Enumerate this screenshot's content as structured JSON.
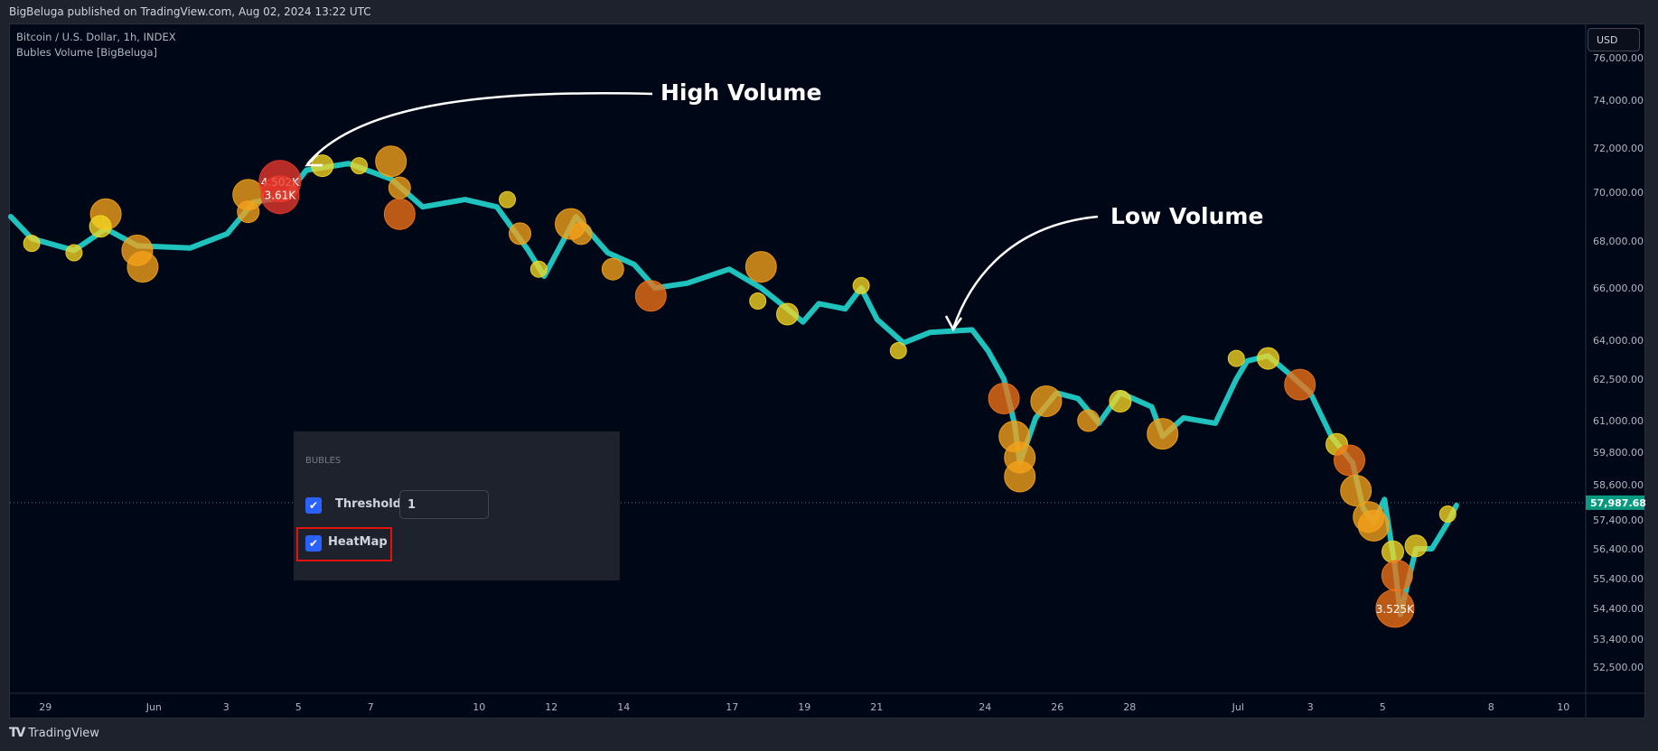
{
  "header": {
    "published": "BigBeluga published on TradingView.com, Aug 02, 2024 13:22 UTC"
  },
  "legend": {
    "symbol": "Bitcoin / U.S. Dollar, 1h, INDEX",
    "indicator": "Bubles Volume [BigBeluga]"
  },
  "currency_button": "USD",
  "footer": {
    "logo": "TV",
    "brand": "TradingView"
  },
  "annotations": {
    "high": "High Volume",
    "low": "Low Volume"
  },
  "settings_panel": {
    "section": "BUBLES",
    "threshold_label": "Threshold",
    "threshold_value": "1",
    "threshold_checked": true,
    "heatmap_label": "HeatMap",
    "heatmap_checked": true
  },
  "colors": {
    "line": "#1fc2bd",
    "last_price": "#089981",
    "yellow": "#f5d623",
    "orange": "#f5a21a",
    "darkorange": "#ef7217",
    "red": "#e8392a"
  },
  "chart_data": {
    "type": "scatter",
    "title": "Bitcoin / U.S. Dollar, 1h, INDEX",
    "x_unit": "days since May 29",
    "y_ticks": [
      "76,000.00",
      "74,000.00",
      "72,000.00",
      "70,000.00",
      "68,000.00",
      "66,000.00",
      "64,000.00",
      "62,500.00",
      "61,000.00",
      "59,800.00",
      "58,600.00",
      "57,400.00",
      "56,400.00",
      "55,400.00",
      "54,400.00",
      "53,400.00",
      "52,500.00"
    ],
    "y_tick_values": [
      76000,
      74000,
      72000,
      70000,
      68000,
      66000,
      64000,
      62500,
      61000,
      59800,
      58600,
      57400,
      56400,
      55400,
      54400,
      53400,
      52500
    ],
    "x_ticks": [
      {
        "label": "29",
        "t": 0
      },
      {
        "label": "Jun",
        "t": 3
      },
      {
        "label": "3",
        "t": 5
      },
      {
        "label": "5",
        "t": 7
      },
      {
        "label": "7",
        "t": 9
      },
      {
        "label": "10",
        "t": 12
      },
      {
        "label": "12",
        "t": 14
      },
      {
        "label": "14",
        "t": 16
      },
      {
        "label": "17",
        "t": 19
      },
      {
        "label": "19",
        "t": 21
      },
      {
        "label": "21",
        "t": 23
      },
      {
        "label": "24",
        "t": 26
      },
      {
        "label": "26",
        "t": 28
      },
      {
        "label": "28",
        "t": 30
      },
      {
        "label": "Jul",
        "t": 33
      },
      {
        "label": "3",
        "t": 35
      },
      {
        "label": "5",
        "t": 37
      },
      {
        "label": "8",
        "t": 40
      },
      {
        "label": "10",
        "t": 42
      }
    ],
    "last_price": 57987.68,
    "last_price_label": "57,987.68",
    "price_series": [
      [
        -0.96,
        69000
      ],
      [
        -0.38,
        68100
      ],
      [
        0.79,
        67600
      ],
      [
        1.67,
        68500
      ],
      [
        2.54,
        67800
      ],
      [
        4.0,
        67700
      ],
      [
        5.03,
        68300
      ],
      [
        5.76,
        69600
      ],
      [
        6.64,
        69800
      ],
      [
        7.22,
        71000
      ],
      [
        8.39,
        71300
      ],
      [
        9.56,
        70600
      ],
      [
        10.44,
        69400
      ],
      [
        11.61,
        69700
      ],
      [
        12.49,
        69400
      ],
      [
        13.36,
        67600
      ],
      [
        13.8,
        66500
      ],
      [
        14.68,
        69000
      ],
      [
        15.56,
        67500
      ],
      [
        16.29,
        67000
      ],
      [
        16.87,
        66000
      ],
      [
        17.75,
        66200
      ],
      [
        18.92,
        66800
      ],
      [
        19.8,
        66000
      ],
      [
        20.53,
        65200
      ],
      [
        20.96,
        64700
      ],
      [
        21.4,
        65400
      ],
      [
        22.13,
        65200
      ],
      [
        22.57,
        66000
      ],
      [
        23.01,
        64800
      ],
      [
        23.74,
        63900
      ],
      [
        24.47,
        64300
      ],
      [
        25.64,
        64400
      ],
      [
        26.08,
        63600
      ],
      [
        26.52,
        62500
      ],
      [
        26.81,
        60900
      ],
      [
        26.96,
        59400
      ],
      [
        27.4,
        61100
      ],
      [
        27.98,
        62000
      ],
      [
        28.57,
        61800
      ],
      [
        29.15,
        60900
      ],
      [
        29.74,
        62000
      ],
      [
        30.61,
        61500
      ],
      [
        30.91,
        60400
      ],
      [
        31.49,
        61100
      ],
      [
        32.37,
        60900
      ],
      [
        32.95,
        62500
      ],
      [
        33.25,
        63200
      ],
      [
        33.83,
        63400
      ],
      [
        34.42,
        62700
      ],
      [
        35.0,
        62000
      ],
      [
        35.58,
        60400
      ],
      [
        36.17,
        59400
      ],
      [
        36.46,
        57800
      ],
      [
        36.75,
        57300
      ],
      [
        37.05,
        58100
      ],
      [
        37.34,
        55800
      ],
      [
        37.49,
        54200
      ],
      [
        37.92,
        56400
      ],
      [
        38.36,
        56400
      ],
      [
        38.8,
        57300
      ],
      [
        39.04,
        57900
      ]
    ],
    "bubbles": [
      {
        "t": 1.67,
        "price": 69100,
        "level": 3,
        "heat": "orange"
      },
      {
        "t": 1.52,
        "price": 68600,
        "level": 2,
        "heat": "yellow"
      },
      {
        "t": -0.38,
        "price": 67900,
        "level": 1,
        "heat": "yellow"
      },
      {
        "t": 0.79,
        "price": 67500,
        "level": 1,
        "heat": "yellow"
      },
      {
        "t": 2.54,
        "price": 67600,
        "level": 3,
        "heat": "orange"
      },
      {
        "t": 2.69,
        "price": 66900,
        "level": 3,
        "heat": "orange"
      },
      {
        "t": 5.61,
        "price": 69900,
        "level": 3,
        "heat": "orange"
      },
      {
        "t": 5.61,
        "price": 69200,
        "level": 2,
        "heat": "orange"
      },
      {
        "t": 6.49,
        "price": 70500,
        "level": 5,
        "heat": "red",
        "label": "4.502K"
      },
      {
        "t": 6.49,
        "price": 69900,
        "level": 4,
        "heat": "red",
        "label": "3.61K"
      },
      {
        "t": 7.66,
        "price": 71200,
        "level": 2,
        "heat": "yellow"
      },
      {
        "t": 8.68,
        "price": 71200,
        "level": 1,
        "heat": "yellow"
      },
      {
        "t": 9.56,
        "price": 71400,
        "level": 3,
        "heat": "orange"
      },
      {
        "t": 9.8,
        "price": 70200,
        "level": 2,
        "heat": "orange"
      },
      {
        "t": 9.8,
        "price": 69100,
        "level": 3,
        "heat": "darkorange"
      },
      {
        "t": 12.78,
        "price": 69700,
        "level": 1,
        "heat": "yellow"
      },
      {
        "t": 13.13,
        "price": 68300,
        "level": 2,
        "heat": "orange"
      },
      {
        "t": 13.65,
        "price": 66800,
        "level": 1,
        "heat": "yellow"
      },
      {
        "t": 14.53,
        "price": 68700,
        "level": 3,
        "heat": "orange"
      },
      {
        "t": 14.82,
        "price": 68300,
        "level": 2,
        "heat": "orange"
      },
      {
        "t": 15.7,
        "price": 66800,
        "level": 2,
        "heat": "orange"
      },
      {
        "t": 16.75,
        "price": 65700,
        "level": 3,
        "heat": "darkorange"
      },
      {
        "t": 19.8,
        "price": 66900,
        "level": 3,
        "heat": "orange"
      },
      {
        "t": 19.71,
        "price": 65500,
        "level": 1,
        "heat": "yellow"
      },
      {
        "t": 20.53,
        "price": 65000,
        "level": 2,
        "heat": "yellow"
      },
      {
        "t": 22.57,
        "price": 66100,
        "level": 1,
        "heat": "yellow"
      },
      {
        "t": 23.6,
        "price": 63600,
        "level": 1,
        "heat": "yellow"
      },
      {
        "t": 26.52,
        "price": 61800,
        "level": 3,
        "heat": "darkorange"
      },
      {
        "t": 26.81,
        "price": 60400,
        "level": 3,
        "heat": "orange"
      },
      {
        "t": 26.96,
        "price": 59600,
        "level": 3,
        "heat": "orange"
      },
      {
        "t": 26.96,
        "price": 58900,
        "level": 3,
        "heat": "orange"
      },
      {
        "t": 27.69,
        "price": 61700,
        "level": 3,
        "heat": "orange"
      },
      {
        "t": 28.86,
        "price": 61000,
        "level": 2,
        "heat": "orange"
      },
      {
        "t": 29.74,
        "price": 61700,
        "level": 2,
        "heat": "yellow"
      },
      {
        "t": 30.91,
        "price": 60500,
        "level": 3,
        "heat": "orange"
      },
      {
        "t": 32.95,
        "price": 63300,
        "level": 1,
        "heat": "yellow"
      },
      {
        "t": 33.83,
        "price": 63300,
        "level": 2,
        "heat": "yellow"
      },
      {
        "t": 34.71,
        "price": 62300,
        "level": 3,
        "heat": "darkorange"
      },
      {
        "t": 35.73,
        "price": 60100,
        "level": 2,
        "heat": "yellow"
      },
      {
        "t": 36.08,
        "price": 59500,
        "level": 3,
        "heat": "darkorange"
      },
      {
        "t": 36.26,
        "price": 58400,
        "level": 3,
        "heat": "orange"
      },
      {
        "t": 36.61,
        "price": 57500,
        "level": 3,
        "heat": "orange"
      },
      {
        "t": 36.75,
        "price": 57200,
        "level": 3,
        "heat": "orange"
      },
      {
        "t": 37.28,
        "price": 56300,
        "level": 2,
        "heat": "yellow"
      },
      {
        "t": 37.4,
        "price": 55500,
        "level": 3,
        "heat": "darkorange"
      },
      {
        "t": 37.34,
        "price": 54400,
        "level": 4,
        "heat": "darkorange",
        "label": "3.525K"
      },
      {
        "t": 37.92,
        "price": 56500,
        "level": 2,
        "heat": "yellow"
      },
      {
        "t": 38.8,
        "price": 57600,
        "level": 1,
        "heat": "yellow"
      }
    ]
  }
}
